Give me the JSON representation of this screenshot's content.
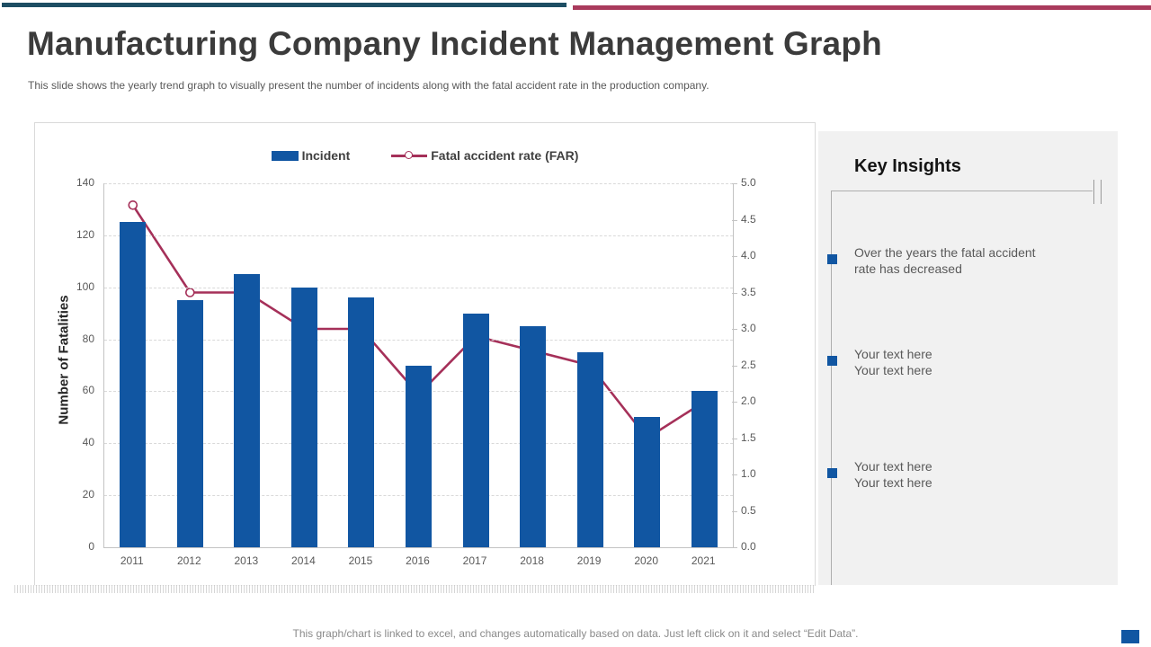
{
  "slide": {
    "title": "Manufacturing Company Incident Management Graph",
    "subtitle": "This slide shows the yearly trend graph to visually present the number of incidents along with the fatal accident rate in the production company.",
    "footer": "This graph/chart is linked to excel,  and changes automatically based on data. Just left click on it and select “Edit Data”.",
    "colors": {
      "topbar_blue": "#1d4e63",
      "topbar_red": "#a93a5c",
      "accent_blue": "#1156a2",
      "accent_crimson": "#a53059",
      "panel_bg": "#f1f1f1"
    }
  },
  "chart_data": {
    "type": "bar",
    "subtype": "combo-bar-line",
    "categories": [
      "2011",
      "2012",
      "2013",
      "2014",
      "2015",
      "2016",
      "2017",
      "2018",
      "2019",
      "2020",
      "2021"
    ],
    "series": [
      {
        "name": "Incident",
        "type": "bar",
        "axis": "left",
        "color": "#1156a2",
        "values": [
          125,
          95,
          105,
          100,
          96,
          70,
          90,
          85,
          75,
          50,
          60
        ]
      },
      {
        "name": "Fatal accident rate (FAR)",
        "type": "line",
        "axis": "right",
        "color": "#a53059",
        "marker": "circle-white-fill",
        "values": [
          4.7,
          3.5,
          3.5,
          3.0,
          3.0,
          2.1,
          2.9,
          2.7,
          2.5,
          1.5,
          2.0
        ]
      }
    ],
    "left_axis": {
      "label": "Number of Fatalities",
      "min": 0,
      "max": 140,
      "step": 20,
      "ticks": [
        0,
        20,
        40,
        60,
        80,
        100,
        120,
        140
      ]
    },
    "right_axis": {
      "label": "",
      "min": 0,
      "max": 5,
      "step": 0.5,
      "ticks": [
        "0.0",
        "0.5",
        "1.0",
        "1.5",
        "2.0",
        "2.5",
        "3.0",
        "3.5",
        "4.0",
        "4.5",
        "5.0"
      ]
    },
    "grid": "horizontal-dashed",
    "legend_position": "top-center",
    "title": ""
  },
  "insights": {
    "title": "Key Insights",
    "items": [
      {
        "lines": [
          "Over the years the fatal accident",
          "rate has decreased"
        ]
      },
      {
        "lines": [
          "Your text here",
          "Your text here"
        ]
      },
      {
        "lines": [
          "Your text here",
          "Your text here"
        ]
      }
    ]
  }
}
